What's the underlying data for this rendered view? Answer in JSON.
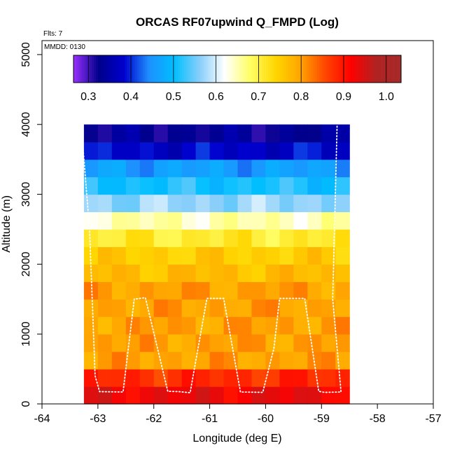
{
  "chart_data": {
    "type": "heatmap",
    "title": "ORCAS RF07upwind Q_FMPD (Log)",
    "xlabel": "Longitude (deg E)",
    "ylabel": "Altitude (m)",
    "xlim": [
      -64,
      -57
    ],
    "ylim": [
      0,
      5200
    ],
    "xticks": [
      -64,
      -63,
      -62,
      -61,
      -60,
      -59,
      -58,
      -57
    ],
    "yticks": [
      0,
      1000,
      2000,
      3000,
      4000,
      5000
    ],
    "annotations": {
      "flights": "Flts: 7",
      "mmdd": "MMDD: 0130"
    },
    "colorbar": {
      "range": [
        0.265,
        1.035
      ],
      "ticks": [
        0.3,
        0.4,
        0.5,
        0.6,
        0.7,
        0.8,
        0.9,
        1.0
      ],
      "tick_labels": [
        "0.3",
        "0.4",
        "0.5",
        "0.6",
        "0.7",
        "0.8",
        "0.9",
        "1.0"
      ],
      "colors": [
        "#9b30ff",
        "#00008b",
        "#0000cd",
        "#1e90ff",
        "#00bfff",
        "#87cefa",
        "#ffffff",
        "#ffff66",
        "#ffd700",
        "#ffa500",
        "#ff4500",
        "#ff0000",
        "#b22222",
        "#a52a2a"
      ]
    },
    "grid": {
      "x_range": [
        -63.25,
        -58.5
      ],
      "n_columns": 19,
      "altitude_bins": [
        {
          "bottom": 0,
          "top": 250,
          "value": 0.93
        },
        {
          "bottom": 250,
          "top": 500,
          "value": 0.88
        },
        {
          "bottom": 500,
          "top": 750,
          "value": 0.8
        },
        {
          "bottom": 750,
          "top": 1000,
          "value": 0.8
        },
        {
          "bottom": 1000,
          "top": 1250,
          "value": 0.8
        },
        {
          "bottom": 1250,
          "top": 1500,
          "value": 0.8
        },
        {
          "bottom": 1500,
          "top": 1750,
          "value": 0.8
        },
        {
          "bottom": 1750,
          "top": 2000,
          "value": 0.77
        },
        {
          "bottom": 2000,
          "top": 2250,
          "value": 0.75
        },
        {
          "bottom": 2250,
          "top": 2500,
          "value": 0.71
        },
        {
          "bottom": 2500,
          "top": 2750,
          "value": 0.65
        },
        {
          "bottom": 2750,
          "top": 3000,
          "value": 0.57
        },
        {
          "bottom": 3000,
          "top": 3250,
          "value": 0.51
        },
        {
          "bottom": 3250,
          "top": 3500,
          "value": 0.46
        },
        {
          "bottom": 3500,
          "top": 3750,
          "value": 0.38
        },
        {
          "bottom": 3750,
          "top": 4000,
          "value": 0.33
        }
      ]
    },
    "flight_track": {
      "color": "#ffffff",
      "lon": [
        -63.3,
        -63.15,
        -63.05,
        -62.97,
        -62.55,
        -62.35,
        -62.15,
        -61.75,
        -61.55,
        -61.35,
        -61.05,
        -60.75,
        -60.45,
        -60.05,
        -59.85,
        -59.75,
        -59.3,
        -59.05,
        -58.95,
        -58.65,
        -58.8,
        -58.72
      ],
      "alt": [
        4000,
        2500,
        400,
        175,
        170,
        1500,
        1520,
        180,
        175,
        160,
        1510,
        1510,
        170,
        165,
        800,
        1510,
        1510,
        180,
        165,
        170,
        1500,
        4000
      ]
    }
  }
}
